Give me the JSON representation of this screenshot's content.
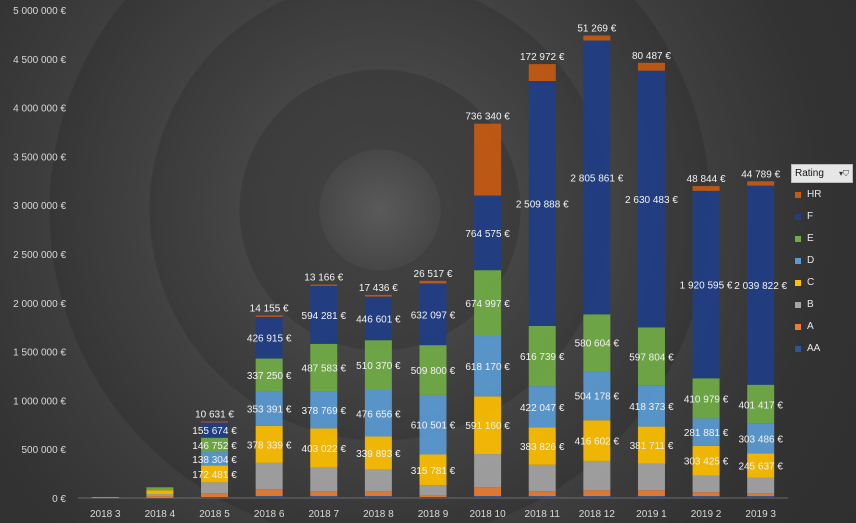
{
  "chart_data": {
    "type": "bar",
    "stacked": true,
    "categories": [
      "2018 3",
      "2018 4",
      "2018 5",
      "2018 6",
      "2018 7",
      "2018 8",
      "2018 9",
      "2018 10",
      "2018 11",
      "2018 12",
      "2019 1",
      "2019 2",
      "2019 3"
    ],
    "ylim": [
      0,
      5000000
    ],
    "yticks": [
      0,
      500000,
      1000000,
      1500000,
      2000000,
      2500000,
      3000000,
      3500000,
      4000000,
      4500000,
      5000000
    ],
    "ytick_labels": [
      "0 €",
      "500 000 €",
      "1 000 000 €",
      "1 500 000 €",
      "2 000 000 €",
      "2 500 000 €",
      "3 000 000 €",
      "3 500 000 €",
      "4 000 000 €",
      "4 500 000 €",
      "5 000 000 €"
    ],
    "grid": false,
    "legend_position": "right",
    "legend_title": "Rating",
    "series": [
      {
        "name": "AA",
        "color": "#2f5597",
        "values": [
          0,
          0,
          10000,
          20000,
          20000,
          20000,
          10000,
          20000,
          20000,
          20000,
          20000,
          20000,
          20000
        ],
        "labels": [
          "",
          "",
          "",
          "",
          "",
          "",
          "",
          "",
          "",
          "",
          "",
          "",
          ""
        ]
      },
      {
        "name": "A",
        "color": "#ed7d31",
        "values": [
          10000,
          20000,
          40000,
          70000,
          50000,
          50000,
          20000,
          90000,
          50000,
          60000,
          60000,
          40000,
          30000
        ],
        "labels": [
          "",
          "",
          "",
          "",
          "",
          "",
          "",
          "",
          "",
          "",
          "",
          "",
          ""
        ]
      },
      {
        "name": "B",
        "color": "#a5a5a5",
        "values": [
          0,
          20000,
          110000,
          270000,
          240000,
          220000,
          100000,
          340000,
          270000,
          300000,
          270000,
          170000,
          160000
        ],
        "labels": [
          "",
          "",
          "",
          "",
          "",
          "",
          "",
          "",
          "",
          "",
          "",
          "",
          ""
        ]
      },
      {
        "name": "C",
        "color": "#ffc000",
        "values": [
          0,
          40000,
          172481,
          378339,
          403022,
          339893,
          315781,
          591160,
          383826,
          416602,
          381711,
          303425,
          245637
        ],
        "labels": [
          "",
          "",
          "172 481 €",
          "378 339 €",
          "403 022 €",
          "339 893 €",
          "315 781 €",
          "591 160 €",
          "383 826 €",
          "416 602 €",
          "381 711 €",
          "303 425 €",
          "245 637 €"
        ]
      },
      {
        "name": "D",
        "color": "#5b9bd5",
        "values": [
          0,
          0,
          138304,
          353391,
          378769,
          476656,
          610501,
          618170,
          422047,
          504178,
          418373,
          281881,
          303486
        ],
        "labels": [
          "",
          "",
          "138 304 €",
          "353 391 €",
          "378 769 €",
          "476 656 €",
          "610 501 €",
          "618 170 €",
          "422 047 €",
          "504 178 €",
          "418 373 €",
          "281 881 €",
          "303 486 €"
        ]
      },
      {
        "name": "E",
        "color": "#70ad47",
        "values": [
          0,
          30000,
          146752,
          337250,
          487583,
          510370,
          509800,
          674997,
          616739,
          580604,
          597804,
          410979,
          401417
        ],
        "labels": [
          "",
          "",
          "146 752 €",
          "337 250 €",
          "487 583 €",
          "510 370 €",
          "509 800 €",
          "674 997 €",
          "616 739 €",
          "580 604 €",
          "597 804 €",
          "410 979 €",
          "401 417 €"
        ]
      },
      {
        "name": "F",
        "color": "#203e86",
        "values": [
          0,
          0,
          155674,
          426915,
          594281,
          446601,
          632097,
          764575,
          2509888,
          2805861,
          2630483,
          1920595,
          2039822
        ],
        "labels": [
          "",
          "",
          "155 674 €",
          "426 915 €",
          "594 281 €",
          "446 601 €",
          "632 097 €",
          "764 575 €",
          "2 509 888 €",
          "2 805 861 €",
          "2 630 483 €",
          "1 920 595 €",
          "2 039 822 €"
        ]
      },
      {
        "name": "HR",
        "color": "#c55a11",
        "values": [
          0,
          0,
          10631,
          14155,
          13166,
          17436,
          26517,
          736340,
          172972,
          51269,
          80487,
          48844,
          44789
        ],
        "labels": [
          "",
          "",
          "10 631 €",
          "14 155 €",
          "13 166 €",
          "17 436 €",
          "26 517 €",
          "736 340 €",
          "172 972 €",
          "51 269 €",
          "80 487 €",
          "48 844 €",
          "44 789 €"
        ]
      }
    ]
  },
  "legend": {
    "title": "Rating",
    "items": [
      {
        "name": "HR",
        "color": "#c55a11"
      },
      {
        "name": "F",
        "color": "#203e86"
      },
      {
        "name": "E",
        "color": "#70ad47"
      },
      {
        "name": "D",
        "color": "#5b9bd5"
      },
      {
        "name": "C",
        "color": "#ffc000"
      },
      {
        "name": "B",
        "color": "#a5a5a5"
      },
      {
        "name": "A",
        "color": "#ed7d31"
      },
      {
        "name": "AA",
        "color": "#2f5597"
      }
    ]
  }
}
